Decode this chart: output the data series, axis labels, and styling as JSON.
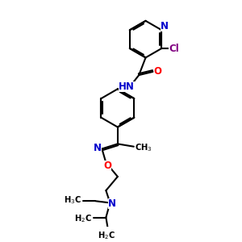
{
  "background_color": "#ffffff",
  "atom_colors": {
    "N": "#0000cc",
    "O": "#ff0000",
    "Cl": "#800080",
    "C": "#000000"
  },
  "bond_color": "#000000",
  "bond_width": 1.5,
  "font_size_atoms": 8.5,
  "font_size_small": 7.2
}
